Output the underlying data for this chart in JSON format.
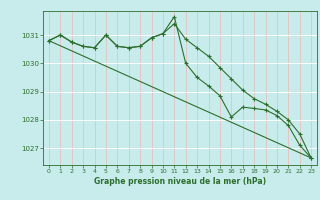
{
  "title": "Graphe pression niveau de la mer (hPa)",
  "bg_color": "#c8ecec",
  "line_color": "#2d6e2d",
  "grid_color_v": "#e8b8b8",
  "grid_color_h": "#ffffff",
  "xlim": [
    -0.5,
    23.5
  ],
  "ylim": [
    1026.4,
    1031.85
  ],
  "yticks": [
    1027,
    1028,
    1029,
    1030,
    1031
  ],
  "xticks": [
    0,
    1,
    2,
    3,
    4,
    5,
    6,
    7,
    8,
    9,
    10,
    11,
    12,
    13,
    14,
    15,
    16,
    17,
    18,
    19,
    20,
    21,
    22,
    23
  ],
  "series1_x": [
    0,
    1,
    2,
    3,
    4,
    5,
    6,
    7,
    8,
    9,
    10,
    11,
    12,
    13,
    14,
    15,
    16,
    17,
    18,
    19,
    20,
    21,
    22,
    23
  ],
  "series1_y": [
    1030.8,
    1031.0,
    1030.75,
    1030.6,
    1030.55,
    1031.0,
    1030.6,
    1030.55,
    1030.6,
    1030.9,
    1031.05,
    1031.65,
    1030.0,
    1029.5,
    1029.2,
    1028.85,
    1028.1,
    1028.45,
    1028.4,
    1028.35,
    1028.15,
    1027.8,
    1027.1,
    1026.65
  ],
  "series2_x": [
    0,
    1,
    2,
    3,
    4,
    5,
    6,
    7,
    8,
    9,
    10,
    11,
    12,
    13,
    14,
    15,
    16,
    17,
    18,
    19,
    20,
    21,
    22,
    23
  ],
  "series2_y": [
    1030.8,
    1031.0,
    1030.75,
    1030.6,
    1030.55,
    1031.0,
    1030.6,
    1030.55,
    1030.6,
    1030.9,
    1031.05,
    1031.4,
    1030.85,
    1030.55,
    1030.25,
    1029.85,
    1029.45,
    1029.05,
    1028.75,
    1028.55,
    1028.3,
    1028.0,
    1027.5,
    1026.65
  ],
  "series3_x": [
    0,
    23
  ],
  "series3_y": [
    1030.8,
    1026.65
  ]
}
